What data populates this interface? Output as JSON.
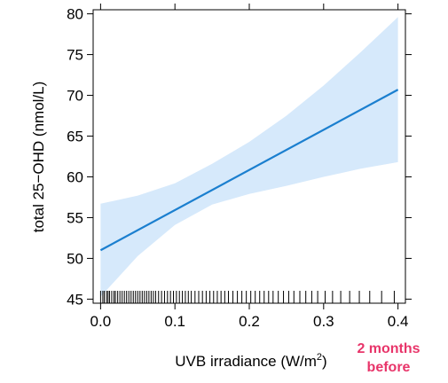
{
  "chart_data": {
    "type": "line",
    "xlabel": "UVB irradiance (W/m",
    "xlabel_superscript": "2",
    "xlabel_suffix": ")",
    "ylabel": "total 25−OHD (nmol/L)",
    "xlim": [
      -0.01,
      0.41
    ],
    "ylim": [
      44.5,
      80.5
    ],
    "x_ticks": [
      0.0,
      0.1,
      0.2,
      0.3,
      0.4
    ],
    "x_tick_labels": [
      "0.0",
      "0.1",
      "0.2",
      "0.3",
      "0.4"
    ],
    "y_ticks": [
      45,
      50,
      55,
      60,
      65,
      70,
      75,
      80
    ],
    "y_tick_labels": [
      "45",
      "50",
      "55",
      "60",
      "65",
      "70",
      "75",
      "80"
    ],
    "grid": false,
    "fit_line": {
      "x": [
        0.0,
        0.4
      ],
      "y": [
        51.0,
        70.7
      ]
    },
    "confidence_band": {
      "x": [
        0.0,
        0.05,
        0.1,
        0.15,
        0.2,
        0.25,
        0.3,
        0.35,
        0.4
      ],
      "lower": [
        45.3,
        50.3,
        54.1,
        56.6,
        57.9,
        58.9,
        60.0,
        61.0,
        61.8
      ],
      "upper": [
        56.7,
        57.7,
        59.2,
        61.6,
        64.3,
        67.5,
        71.2,
        75.3,
        79.6
      ]
    },
    "rug_x": [
      0.0,
      0.003,
      0.005,
      0.008,
      0.01,
      0.012,
      0.015,
      0.018,
      0.02,
      0.023,
      0.026,
      0.029,
      0.032,
      0.035,
      0.038,
      0.041,
      0.044,
      0.047,
      0.05,
      0.053,
      0.056,
      0.059,
      0.062,
      0.065,
      0.068,
      0.071,
      0.074,
      0.078,
      0.082,
      0.086,
      0.09,
      0.094,
      0.098,
      0.102,
      0.106,
      0.11,
      0.114,
      0.118,
      0.122,
      0.127,
      0.132,
      0.137,
      0.142,
      0.147,
      0.152,
      0.157,
      0.162,
      0.167,
      0.172,
      0.178,
      0.184,
      0.19,
      0.196,
      0.202,
      0.208,
      0.214,
      0.22,
      0.226,
      0.232,
      0.239,
      0.246,
      0.253,
      0.26,
      0.268,
      0.276,
      0.284,
      0.292,
      0.302,
      0.312,
      0.323,
      0.335,
      0.348,
      0.362,
      0.378,
      0.395
    ],
    "colors": {
      "line": "#1b7fcf",
      "band": "#d6e9fb",
      "note": "#e8356a",
      "axis": "#000000"
    }
  },
  "annotation": {
    "line1": "2 months",
    "line2": "before"
  }
}
